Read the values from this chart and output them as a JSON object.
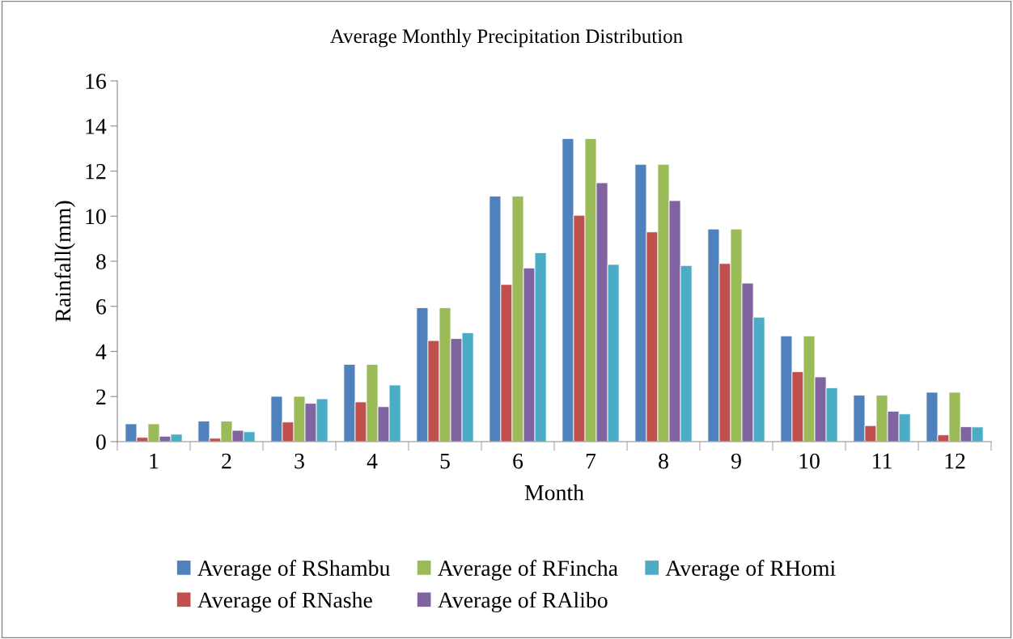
{
  "chart_data": {
    "type": "bar",
    "title": "Average Monthly Precipitation Distribution",
    "xlabel": "Month",
    "ylabel": "Rainfall(mm)",
    "categories": [
      "1",
      "2",
      "3",
      "4",
      "5",
      "6",
      "7",
      "8",
      "9",
      "10",
      "11",
      "12"
    ],
    "series": [
      {
        "name": "Average of RShambu",
        "color": "#4f81bd",
        "values": [
          0.79,
          0.91,
          2.01,
          3.43,
          5.94,
          10.89,
          13.44,
          12.3,
          9.43,
          4.69,
          2.06,
          2.19
        ]
      },
      {
        "name": "Average of RNashe",
        "color": "#c0504d",
        "values": [
          0.19,
          0.15,
          0.87,
          1.76,
          4.48,
          6.97,
          10.04,
          9.3,
          7.9,
          3.1,
          0.71,
          0.3
        ]
      },
      {
        "name": "Average of RFincha",
        "color": "#9bbb59",
        "values": [
          0.79,
          0.91,
          2.01,
          3.43,
          5.94,
          10.89,
          13.44,
          12.3,
          9.43,
          4.69,
          2.06,
          2.19
        ]
      },
      {
        "name": "Average of RAlibo",
        "color": "#8064a2",
        "values": [
          0.24,
          0.5,
          1.7,
          1.55,
          4.57,
          7.7,
          11.48,
          10.69,
          7.03,
          2.87,
          1.35,
          0.66
        ]
      },
      {
        "name": "Average of RHomi",
        "color": "#4bacc6",
        "values": [
          0.33,
          0.44,
          1.9,
          2.51,
          4.83,
          8.38,
          7.86,
          7.81,
          5.52,
          2.39,
          1.23,
          0.65
        ]
      }
    ],
    "ylim": [
      0,
      16
    ],
    "yticks": [
      0,
      2,
      4,
      6,
      8,
      10,
      12,
      14,
      16
    ],
    "grid": false,
    "legend": "bottom"
  }
}
